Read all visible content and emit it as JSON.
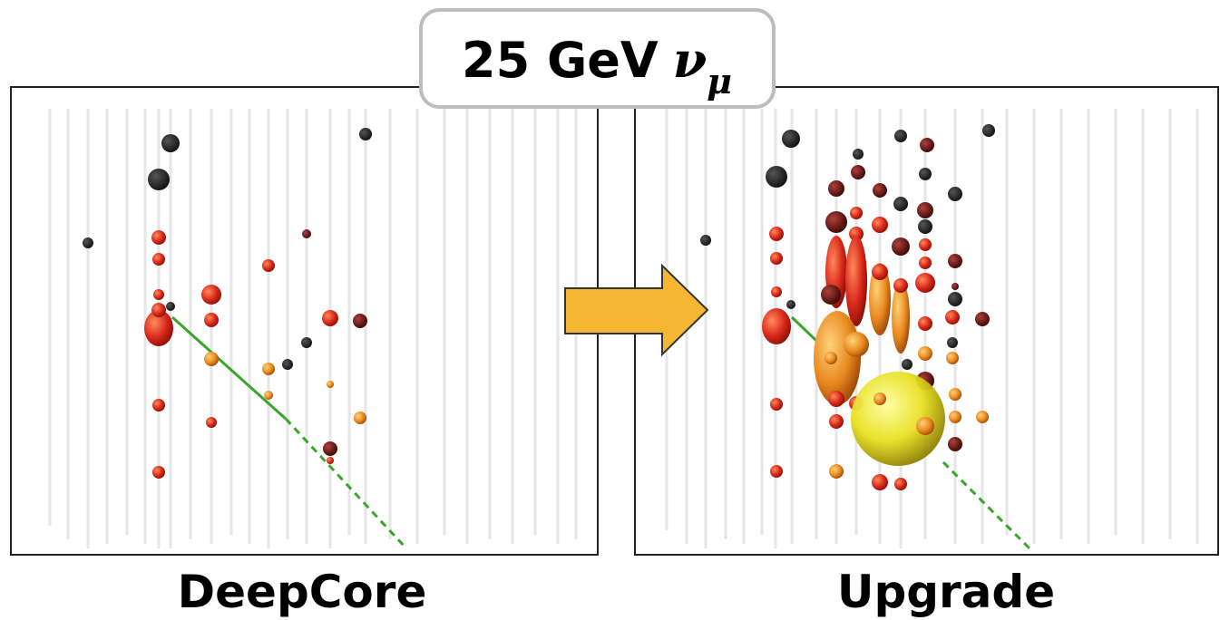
{
  "title": {
    "main": "25 GeV",
    "symbol": "ν",
    "subscript": "μ"
  },
  "panels": [
    {
      "label": "DeepCore"
    },
    {
      "label": "Upgrade"
    }
  ]
}
